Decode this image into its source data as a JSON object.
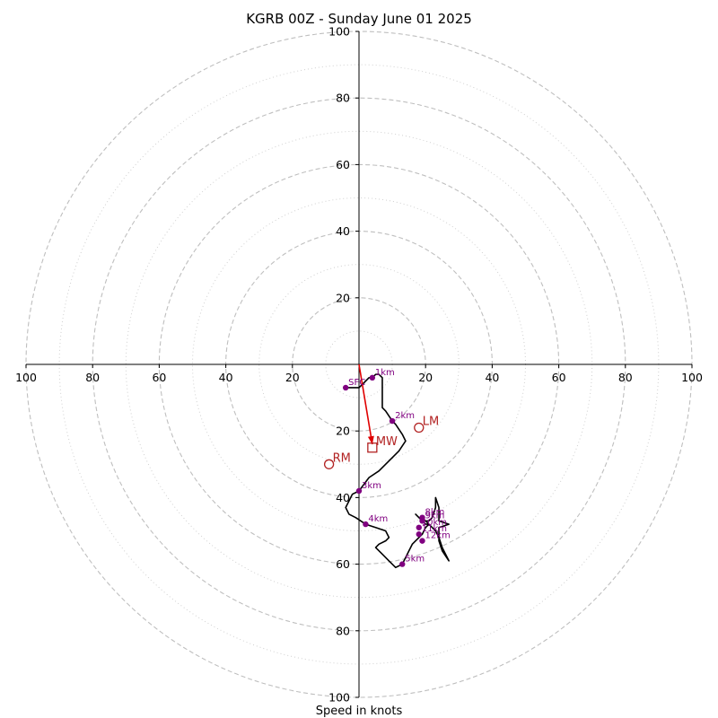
{
  "chart_data": {
    "type": "scatter",
    "title": "KGRB 00Z - Sunday June 01 2025",
    "xlabel": "Speed in knots",
    "xlim": [
      -100,
      100
    ],
    "ylim": [
      -100,
      100
    ],
    "ring_major": [
      20,
      40,
      60,
      80,
      100
    ],
    "ring_minor": [
      10,
      30,
      50,
      70,
      90
    ],
    "tick_labels": [
      "100",
      "80",
      "60",
      "40",
      "20",
      "20",
      "40",
      "60",
      "80",
      "100"
    ],
    "hodograph": [
      [
        -4,
        -7
      ],
      [
        -1,
        -7
      ],
      [
        0,
        -7
      ],
      [
        1,
        -6
      ],
      [
        2,
        -5
      ],
      [
        3,
        -4
      ],
      [
        4,
        -4
      ],
      [
        5,
        -3
      ],
      [
        6,
        -3
      ],
      [
        7,
        -4
      ],
      [
        7,
        -6
      ],
      [
        7,
        -10
      ],
      [
        7,
        -13
      ],
      [
        8,
        -14
      ],
      [
        10,
        -17
      ],
      [
        11,
        -18
      ],
      [
        13,
        -21
      ],
      [
        14,
        -23
      ],
      [
        12,
        -26
      ],
      [
        9,
        -29
      ],
      [
        6,
        -32
      ],
      [
        3,
        -34
      ],
      [
        0,
        -38
      ],
      [
        -2,
        -39
      ],
      [
        -3,
        -41
      ],
      [
        -4,
        -43
      ],
      [
        -3,
        -45
      ],
      [
        -1,
        -46
      ],
      [
        2,
        -48
      ],
      [
        5,
        -49
      ],
      [
        8,
        -50
      ],
      [
        9,
        -52
      ],
      [
        8,
        -53
      ],
      [
        6,
        -54
      ],
      [
        5,
        -55
      ],
      [
        7,
        -57
      ],
      [
        9,
        -59
      ],
      [
        11,
        -61
      ],
      [
        13,
        -60
      ],
      [
        14,
        -58
      ],
      [
        15,
        -56
      ],
      [
        16,
        -54
      ],
      [
        18,
        -52
      ],
      [
        19,
        -51
      ],
      [
        20,
        -49
      ],
      [
        21,
        -48
      ],
      [
        20,
        -47
      ],
      [
        18,
        -46
      ],
      [
        17,
        -45
      ],
      [
        18,
        -46
      ],
      [
        19,
        -47
      ],
      [
        21,
        -47
      ],
      [
        22,
        -46
      ],
      [
        23,
        -43
      ],
      [
        23,
        -40
      ],
      [
        24,
        -43
      ],
      [
        24,
        -47
      ],
      [
        27,
        -48
      ],
      [
        24,
        -49
      ],
      [
        24,
        -53
      ],
      [
        25,
        -56
      ],
      [
        27,
        -59
      ],
      [
        25,
        -55
      ],
      [
        24,
        -52
      ],
      [
        23,
        -50
      ],
      [
        22,
        -49
      ],
      [
        21,
        -48
      ],
      [
        20,
        -48
      ],
      [
        19,
        -47
      ]
    ],
    "height_markers": [
      {
        "label": "1km",
        "x": 4,
        "y": -4
      },
      {
        "label": "2km",
        "x": 10,
        "y": -17
      },
      {
        "label": "3km",
        "x": 0,
        "y": -38
      },
      {
        "label": "4km",
        "x": 2,
        "y": -48
      },
      {
        "label": "5km",
        "x": 13,
        "y": -60
      },
      {
        "label": "8km",
        "x": 19,
        "y": -46
      },
      {
        "label": "9km",
        "x": 19,
        "y": -47
      },
      {
        "label": "10km",
        "x": 18,
        "y": -49
      },
      {
        "label": "11km",
        "x": 18,
        "y": -51
      },
      {
        "label": "12km",
        "x": 19,
        "y": -53
      },
      {
        "label": "SFC",
        "x": -4,
        "y": -7
      }
    ],
    "mean_wind_vector": {
      "x": 4,
      "y": -24
    },
    "storm_motion": [
      {
        "label": "LM",
        "x": 18,
        "y": -19,
        "marker": "circle"
      },
      {
        "label": "MW",
        "x": 4,
        "y": -25,
        "marker": "square"
      },
      {
        "label": "RM",
        "x": -9,
        "y": -30,
        "marker": "circle"
      }
    ],
    "colors": {
      "hodograph": "#000000",
      "marker": "#800080",
      "vector": "#e00000",
      "storm_motion": "#b22222",
      "ring": "#bfbfbf",
      "axis": "#000000"
    }
  }
}
